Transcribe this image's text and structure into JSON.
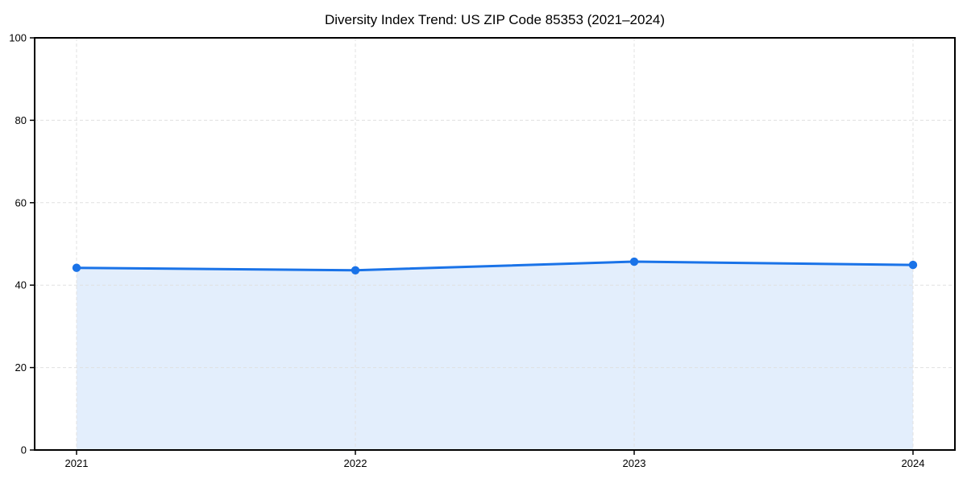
{
  "chart_data": {
    "type": "area",
    "title": "Diversity Index Trend: US ZIP Code 85353 (2021–2024)",
    "categories": [
      "2021",
      "2022",
      "2023",
      "2024"
    ],
    "series": [
      {
        "name": "Diversity Index",
        "values": [
          44.2,
          43.6,
          45.7,
          44.9
        ]
      }
    ],
    "xlabel": "",
    "ylabel": "",
    "ylim": [
      0,
      100
    ],
    "yticks": [
      0,
      20,
      40,
      60,
      80,
      100
    ],
    "grid": true,
    "grid_style": "dashed",
    "legend_position": "none",
    "colors": {
      "line": "#1a73e8",
      "marker": "#1a73e8",
      "fill": "rgba(26,115,232,0.12)",
      "grid": "#e0e0e0",
      "spine": "#000000",
      "tick": "#000000",
      "text": "#000000",
      "background": "#ffffff"
    }
  }
}
